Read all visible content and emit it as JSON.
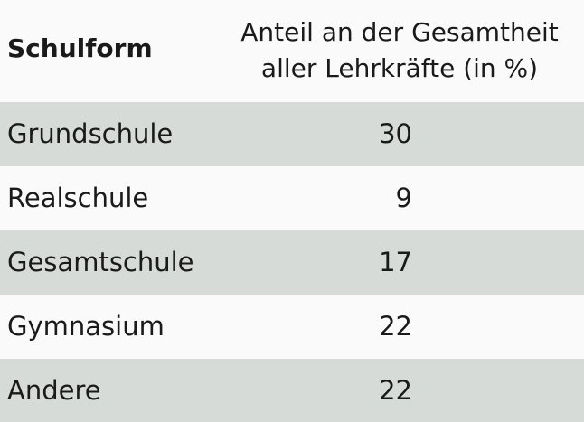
{
  "header": {
    "col_name": "Schulform",
    "col_value_line1": "Anteil an der Gesamtheit",
    "col_value_line2": "aller Lehrkräfte (in %)"
  },
  "rows": [
    {
      "name": "Grundschule",
      "value": "30"
    },
    {
      "name": "Realschule",
      "value": "9"
    },
    {
      "name": "Gesamtschule",
      "value": "17"
    },
    {
      "name": "Gymnasium",
      "value": "22"
    },
    {
      "name": "Andere",
      "value": "22"
    }
  ]
}
